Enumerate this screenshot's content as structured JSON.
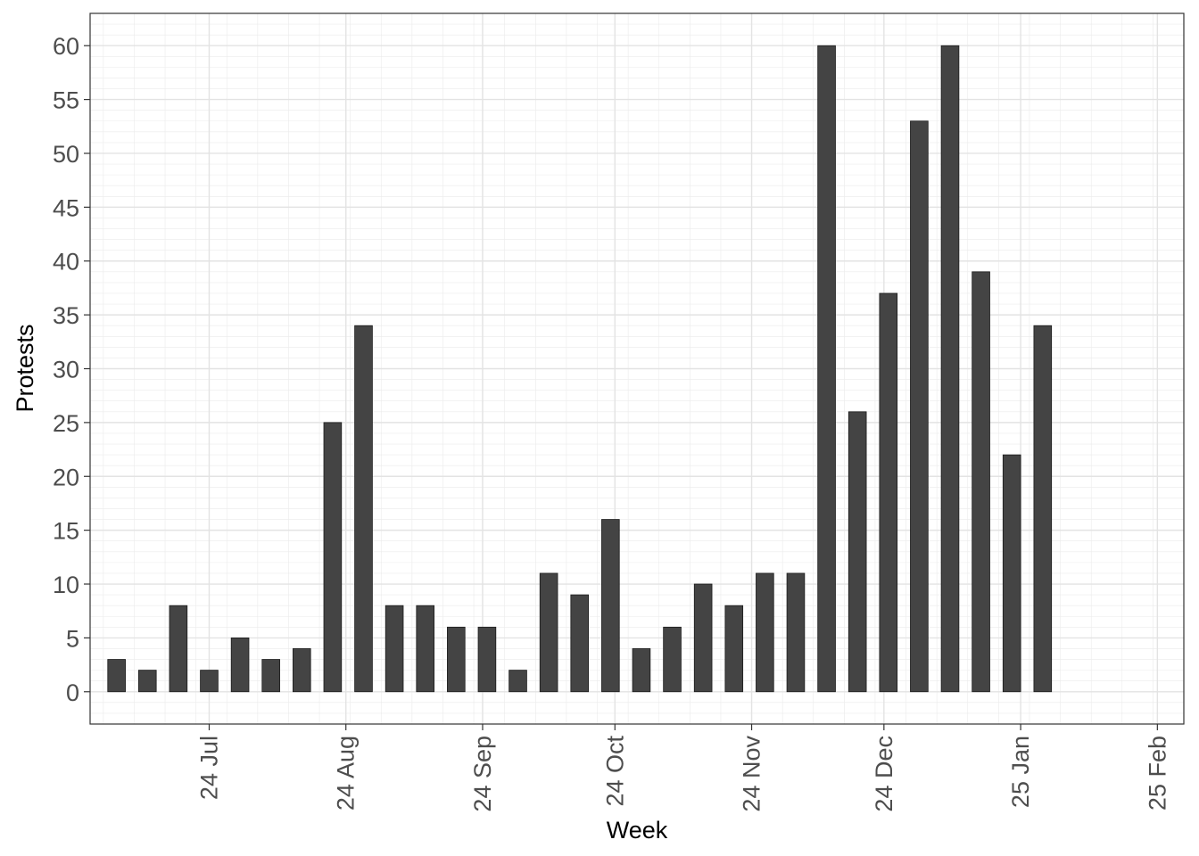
{
  "chart_data": {
    "type": "bar",
    "title": "",
    "xlabel": "Week",
    "ylabel": "Protests",
    "x_axis_type": "date",
    "xlim": [
      "2024-06-04",
      "2025-02-07"
    ],
    "ylim": [
      -3,
      63
    ],
    "y_ticks": [
      0,
      5,
      10,
      15,
      20,
      25,
      30,
      35,
      40,
      45,
      50,
      55,
      60
    ],
    "x_ticks": [
      {
        "date": "2024-07-01",
        "label": "24 Jul"
      },
      {
        "date": "2024-08-01",
        "label": "24 Aug"
      },
      {
        "date": "2024-09-01",
        "label": "24 Sep"
      },
      {
        "date": "2024-10-01",
        "label": "24 Oct"
      },
      {
        "date": "2024-11-01",
        "label": "24 Nov"
      },
      {
        "date": "2024-12-01",
        "label": "24 Dec"
      },
      {
        "date": "2025-01-01",
        "label": "25 Jan"
      },
      {
        "date": "2025-02-01",
        "label": "25 Feb"
      }
    ],
    "grid": true,
    "legend": "none",
    "bar_color": "#444444",
    "x": [
      "2024-06-10",
      "2024-06-17",
      "2024-06-24",
      "2024-07-01",
      "2024-07-08",
      "2024-07-15",
      "2024-07-22",
      "2024-07-29",
      "2024-08-05",
      "2024-08-12",
      "2024-08-19",
      "2024-08-26",
      "2024-09-02",
      "2024-09-09",
      "2024-09-16",
      "2024-09-23",
      "2024-09-30",
      "2024-10-07",
      "2024-10-14",
      "2024-10-21",
      "2024-10-28",
      "2024-11-04",
      "2024-11-11",
      "2024-11-18",
      "2024-11-25",
      "2024-12-02",
      "2024-12-09",
      "2024-12-16",
      "2024-12-23",
      "2024-12-30",
      "2025-01-06"
    ],
    "values": [
      3,
      2,
      8,
      2,
      5,
      3,
      4,
      25,
      34,
      8,
      8,
      6,
      6,
      2,
      11,
      9,
      16,
      4,
      6,
      10,
      8,
      11,
      11,
      60,
      26,
      37,
      53,
      60,
      39,
      22,
      34
    ]
  }
}
